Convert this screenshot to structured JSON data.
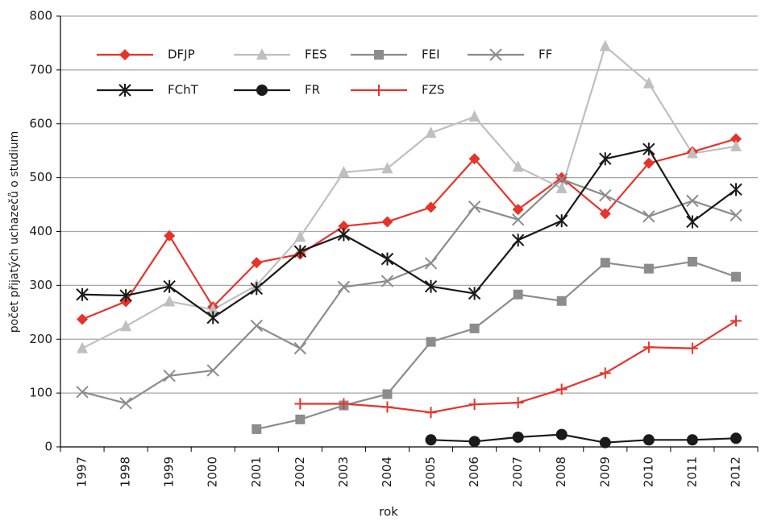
{
  "chart_data": {
    "type": "line",
    "x_label": "rok",
    "y_label": "počet přijatých uchazečů o studium",
    "categories": [
      "1997",
      "1998",
      "1999",
      "2000",
      "2001",
      "2002",
      "2003",
      "2004",
      "2005",
      "2006",
      "2007",
      "2008",
      "2009",
      "2010",
      "2011",
      "2012"
    ],
    "series": [
      {
        "name": "DFJP",
        "color": "#e8332a",
        "marker": "diamond",
        "values": [
          237,
          270,
          392,
          260,
          342,
          358,
          410,
          418,
          445,
          535,
          441,
          500,
          433,
          527,
          548,
          572
        ]
      },
      {
        "name": "FES",
        "color": "#bfbfbf",
        "marker": "triangle",
        "values": [
          183,
          224,
          270,
          255,
          300,
          390,
          510,
          517,
          583,
          613,
          520,
          480,
          744,
          675,
          545,
          558
        ]
      },
      {
        "name": "FEI",
        "color": "#8c8c8c",
        "marker": "square",
        "values": [
          null,
          null,
          null,
          null,
          33,
          51,
          77,
          98,
          195,
          220,
          283,
          271,
          342,
          331,
          344,
          316
        ]
      },
      {
        "name": "FF",
        "color": "#8c8c8c",
        "marker": "x",
        "values": [
          102,
          81,
          132,
          142,
          225,
          183,
          297,
          308,
          341,
          446,
          422,
          497,
          467,
          428,
          457,
          430
        ]
      },
      {
        "name": "FChT",
        "color": "#1a1a1a",
        "marker": "asterisk",
        "values": [
          283,
          281,
          298,
          240,
          294,
          363,
          394,
          349,
          298,
          285,
          384,
          420,
          535,
          553,
          418,
          478
        ]
      },
      {
        "name": "FR",
        "color": "#1a1a1a",
        "marker": "circle",
        "values": [
          null,
          null,
          null,
          null,
          null,
          null,
          null,
          null,
          13,
          10,
          18,
          23,
          8,
          13,
          13,
          16
        ]
      },
      {
        "name": "FZS",
        "color": "#e8332a",
        "marker": "plus",
        "values": [
          null,
          null,
          null,
          null,
          null,
          80,
          80,
          74,
          64,
          79,
          82,
          107,
          137,
          185,
          183,
          234
        ]
      }
    ],
    "ylim": [
      0,
      800
    ],
    "yticks": [
      0,
      100,
      200,
      300,
      400,
      500,
      600,
      700,
      800
    ],
    "grid": true,
    "legend": "upper left"
  }
}
